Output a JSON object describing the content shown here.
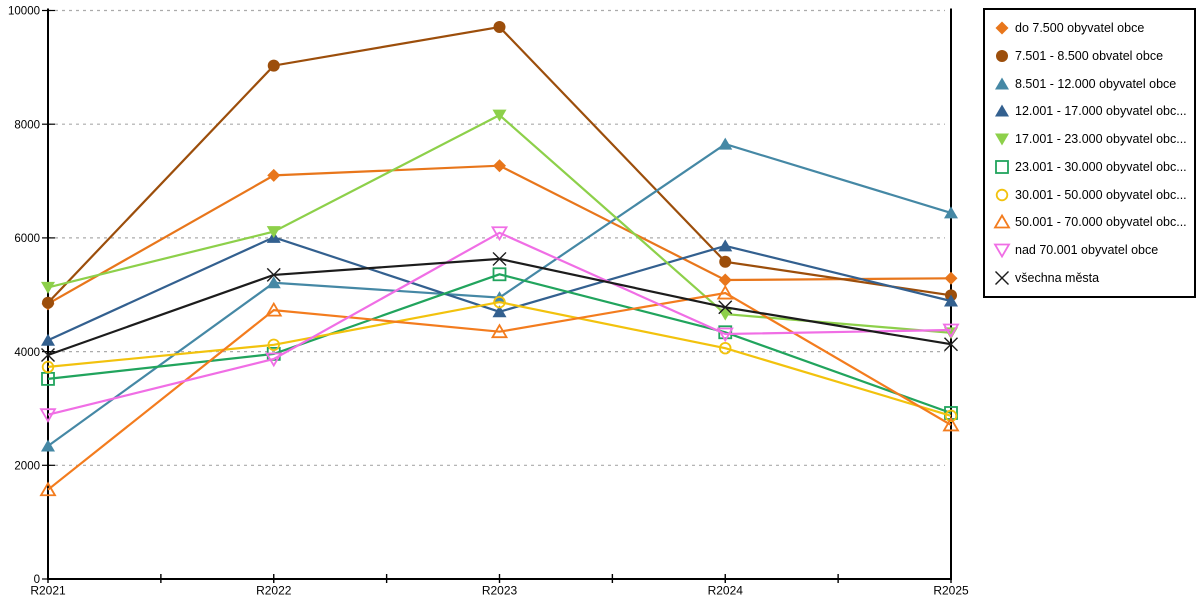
{
  "chart_data": {
    "type": "line",
    "title": "",
    "xlabel": "",
    "ylabel": "",
    "categories": [
      "R2021",
      "R2022",
      "R2023",
      "R2024",
      "R2025"
    ],
    "ylim": [
      0,
      10000
    ],
    "yticks": [
      0,
      2000,
      4000,
      6000,
      8000,
      10000
    ],
    "grid": "horizontal-dashed",
    "gridline_color": "#ABABAB",
    "axis_color": "#000000",
    "background": "#FFFFFF",
    "legend_position": "top-right-outside",
    "series": [
      {
        "label": "do 7.500 obyvatel obce",
        "color": "#E8761B",
        "marker": "diamond",
        "values": [
          4840,
          7100,
          7270,
          5260,
          5290
        ]
      },
      {
        "label": "7.501 - 8.500 obvatel obce",
        "color": "#9C4E0B",
        "marker": "circle",
        "values": [
          4860,
          9030,
          9710,
          5580,
          4990
        ]
      },
      {
        "label": "8.501 - 12.000 obyvatel obce",
        "color": "#4588A5",
        "marker": "triangle-up",
        "values": [
          2340,
          5210,
          4950,
          7650,
          6440
        ]
      },
      {
        "label": "12.001 - 17.000 obyvatel obc...",
        "color": "#33608F",
        "marker": "triangle-up",
        "values": [
          4200,
          6010,
          4700,
          5860,
          4890
        ]
      },
      {
        "label": "17.001 - 23.000 obyvatel obc...",
        "color": "#8DD04A",
        "marker": "triangle-down",
        "values": [
          5130,
          6110,
          8160,
          4660,
          4330
        ]
      },
      {
        "label": "23.001 - 30.000 obyvatel obc...",
        "color": "#21A45D",
        "marker": "square-open",
        "values": [
          3520,
          3960,
          5360,
          4340,
          2920
        ]
      },
      {
        "label": "30.001 - 50.000 obyvatel obc...",
        "color": "#F2C20D",
        "marker": "circle-open",
        "values": [
          3730,
          4120,
          4870,
          4060,
          2870
        ]
      },
      {
        "label": "50.001 - 70.000 obyvatel obc...",
        "color": "#F37C1E",
        "marker": "triangle-up-open",
        "values": [
          1570,
          4730,
          4350,
          5030,
          2710
        ]
      },
      {
        "label": "nad 70.001 obyvatel obce",
        "color": "#F06EE5",
        "marker": "triangle-down-open",
        "values": [
          2890,
          3870,
          6090,
          4310,
          4380
        ]
      },
      {
        "label": "všechna města",
        "color": "#1C1C1C",
        "marker": "x",
        "values": [
          3940,
          5350,
          5630,
          4780,
          4130
        ]
      }
    ]
  }
}
